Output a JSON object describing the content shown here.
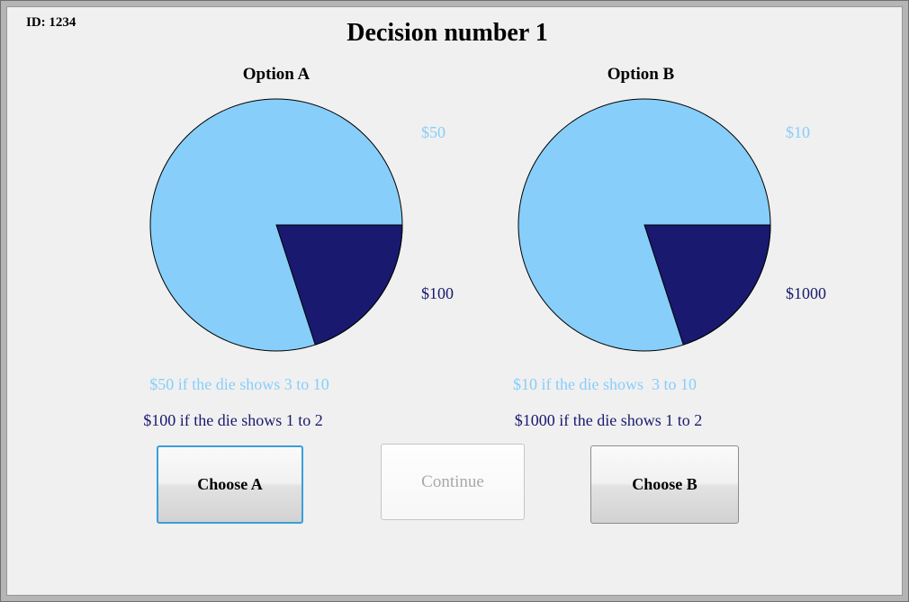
{
  "header": {
    "id_label": "ID: 1234",
    "title": "Decision number 1"
  },
  "options": [
    {
      "name": "Option A",
      "pie": {
        "high_label": "$50",
        "low_label": "$100"
      },
      "high_text": "$50 if the die shows 3 to 10",
      "low_text": "$100 if the die shows 1 to 2",
      "button_label": "Choose A"
    },
    {
      "name": "Option B",
      "pie": {
        "high_label": "$10",
        "low_label": "$1000"
      },
      "high_text": "$10 if the die shows  3 to 10",
      "low_text": "$1000 if the die shows 1 to 2",
      "button_label": "Choose B"
    }
  ],
  "continue_button": {
    "label": "Continue",
    "enabled": false
  },
  "colors": {
    "high_slice": "#87CEFA",
    "low_slice": "#191970",
    "pie_outline": "#000000",
    "background": "#f0f0f0",
    "choose_a_border": "#3b9fd8",
    "disabled_text": "#a9a9a9"
  },
  "chart_data": [
    {
      "type": "pie",
      "title": "Option A",
      "labels": [
        "$50",
        "$100"
      ],
      "values": [
        80,
        20
      ],
      "colors": [
        "#87CEFA",
        "#191970"
      ],
      "start_angle_deg": 0,
      "direction": "clockwise-small-slice",
      "legend_position": "none"
    },
    {
      "type": "pie",
      "title": "Option B",
      "labels": [
        "$10",
        "$1000"
      ],
      "values": [
        80,
        20
      ],
      "colors": [
        "#87CEFA",
        "#191970"
      ],
      "start_angle_deg": 0,
      "direction": "clockwise-small-slice",
      "legend_position": "none"
    }
  ]
}
